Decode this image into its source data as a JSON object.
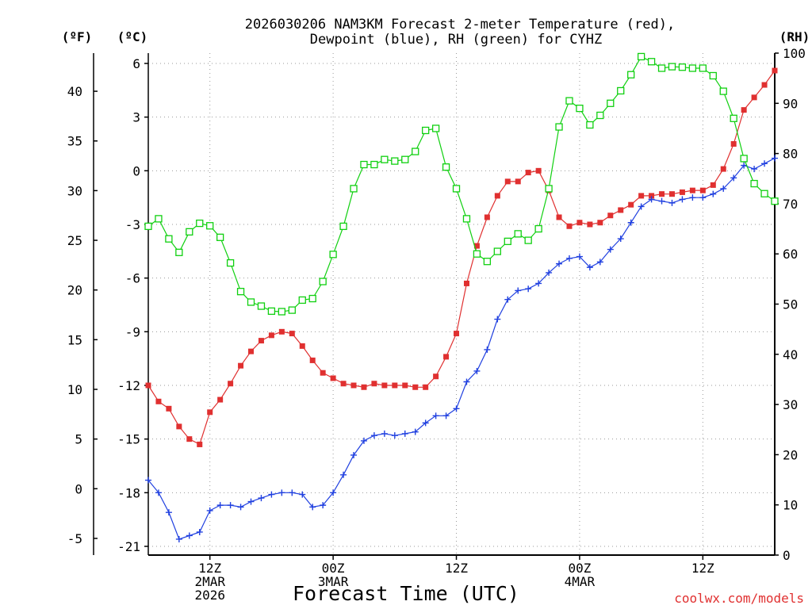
{
  "header": {
    "title_line1": "2026030206 NAM3KM Forecast 2-meter Temperature (red),",
    "title_line2": "Dewpoint (blue), RH (green) for CYHZ"
  },
  "footer": {
    "xlabel": "Forecast Time (UTC)",
    "credit": "coolwx.com/models"
  },
  "colors": {
    "temperature": "#e03030",
    "dewpoint": "#2040e0",
    "rh": "#10d010",
    "grid": "#9a9a9a"
  },
  "chart_data": {
    "type": "line",
    "title": "2026030206 NAM3KM Forecast 2-meter Temperature (red), Dewpoint (blue), RH (green) for CYHZ",
    "xlabel": "Forecast Time (UTC)",
    "x_hours_from_06z_2mar": [
      0,
      1,
      2,
      3,
      4,
      5,
      6,
      7,
      8,
      9,
      10,
      11,
      12,
      13,
      14,
      15,
      16,
      17,
      18,
      19,
      20,
      21,
      22,
      23,
      24,
      25,
      26,
      27,
      28,
      29,
      30,
      31,
      32,
      33,
      34,
      35,
      36,
      37,
      38,
      39,
      40,
      41,
      42,
      43,
      44,
      45,
      46,
      47,
      48,
      49,
      50,
      51,
      52,
      53,
      54,
      55,
      56,
      57,
      58,
      59,
      60,
      61
    ],
    "xlim": [
      0,
      61
    ],
    "x_ticks": [
      {
        "hour": 6,
        "line1": "12Z",
        "line2": "2MAR",
        "line3": "2026"
      },
      {
        "hour": 18,
        "line1": "00Z",
        "line2": "3MAR",
        "line3": ""
      },
      {
        "hour": 30,
        "line1": "12Z",
        "line2": "",
        "line3": ""
      },
      {
        "hour": 42,
        "line1": "00Z",
        "line2": "4MAR",
        "line3": ""
      },
      {
        "hour": 54,
        "line1": "12Z",
        "line2": "",
        "line3": ""
      }
    ],
    "axes": {
      "left_f": {
        "unit": "(ºF)",
        "ticks": [
          40,
          35,
          30,
          25,
          20,
          15,
          10,
          5,
          0,
          -5
        ],
        "range": [
          -5.8,
          43.4
        ]
      },
      "left_c": {
        "unit": "(ºC)",
        "ticks": [
          6,
          3,
          0,
          -3,
          -6,
          -9,
          -12,
          -15,
          -18,
          -21
        ],
        "range": [
          -21.0,
          6.3
        ]
      },
      "right_rh": {
        "unit": "(RH)",
        "ticks": [
          100,
          90,
          80,
          70,
          60,
          50,
          40,
          30,
          20,
          10,
          0
        ],
        "range": [
          0,
          100
        ]
      }
    },
    "series": [
      {
        "name": "2-meter Temperature (°C)",
        "color": "red",
        "marker": "filled-square",
        "axis": "left_c",
        "values": [
          -12.0,
          -12.9,
          -13.3,
          -14.3,
          -15.0,
          -15.3,
          -13.5,
          -12.8,
          -11.9,
          -10.9,
          -10.1,
          -9.5,
          -9.2,
          -9.0,
          -9.1,
          -9.8,
          -10.6,
          -11.3,
          -11.6,
          -11.9,
          -12.0,
          -12.1,
          -11.9,
          -12.0,
          -12.0,
          -12.0,
          -12.1,
          -12.1,
          -11.5,
          -10.4,
          -9.1,
          -6.3,
          -4.2,
          -2.6,
          -1.4,
          -0.6,
          -0.6,
          -0.1,
          0.0,
          -1.1,
          -2.6,
          -3.1,
          -2.9,
          -3.0,
          -2.9,
          -2.5,
          -2.2,
          -1.9,
          -1.4,
          -1.4,
          -1.3,
          -1.3,
          -1.2,
          -1.1,
          -1.1,
          -0.8,
          0.1,
          1.5,
          3.4,
          4.1,
          4.8,
          5.6
        ]
      },
      {
        "name": "Dewpoint (°C)",
        "color": "blue",
        "marker": "plus",
        "axis": "left_c",
        "values": [
          -17.3,
          -18.0,
          -19.1,
          -20.6,
          -20.4,
          -20.2,
          -19.0,
          -18.7,
          -18.7,
          -18.8,
          -18.5,
          -18.3,
          -18.1,
          -18.0,
          -18.0,
          -18.1,
          -18.8,
          -18.7,
          -18.0,
          -17.0,
          -15.9,
          -15.1,
          -14.8,
          -14.7,
          -14.8,
          -14.7,
          -14.6,
          -14.1,
          -13.7,
          -13.7,
          -13.3,
          -11.8,
          -11.2,
          -10.0,
          -8.3,
          -7.2,
          -6.7,
          -6.6,
          -6.3,
          -5.7,
          -5.2,
          -4.9,
          -4.8,
          -5.4,
          -5.1,
          -4.4,
          -3.8,
          -2.9,
          -2.0,
          -1.6,
          -1.7,
          -1.8,
          -1.6,
          -1.5,
          -1.5,
          -1.3,
          -1.0,
          -0.4,
          0.3,
          0.1,
          0.4,
          0.7
        ]
      },
      {
        "name": "RH (%)",
        "color": "green",
        "marker": "open-square",
        "axis": "right_rh",
        "values": [
          65.5,
          67.0,
          63.0,
          60.3,
          64.4,
          66.1,
          65.6,
          63.3,
          58.2,
          52.5,
          50.4,
          49.6,
          48.6,
          48.5,
          48.8,
          50.8,
          51.1,
          54.5,
          59.9,
          65.5,
          73.0,
          77.8,
          77.8,
          78.8,
          78.5,
          78.8,
          80.4,
          84.6,
          85.0,
          77.3,
          73.0,
          67.0,
          60.0,
          58.5,
          60.5,
          62.5,
          64.0,
          62.7,
          65.0,
          73.0,
          85.3,
          90.5,
          89.0,
          85.7,
          87.6,
          90.0,
          92.5,
          95.7,
          99.3,
          98.3,
          97.0,
          97.3,
          97.2,
          97.0,
          97.0,
          95.5,
          92.4,
          87.0,
          79.0,
          74.0,
          72.0,
          70.5
        ]
      }
    ]
  }
}
